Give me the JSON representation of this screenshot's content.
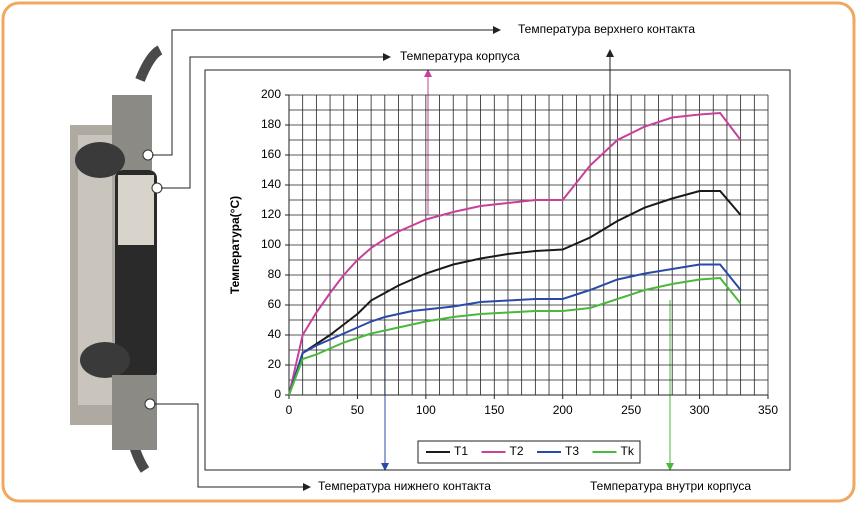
{
  "chart_data": {
    "type": "line",
    "y_label": "Температура(°C)",
    "annotations": {
      "top_contact": "Температура верхнего контакта",
      "body": "Температура корпуса",
      "bottom_contact": "Температура нижнего контакта",
      "inside": "Температура внутри корпуса"
    },
    "x": [
      0,
      10,
      20,
      30,
      40,
      50,
      60,
      70,
      80,
      90,
      100,
      120,
      140,
      160,
      180,
      200,
      220,
      240,
      260,
      280,
      300,
      315,
      330
    ],
    "series": [
      {
        "name": "T1",
        "color": "#1a1a1a",
        "values": [
          0,
          28,
          34,
          40,
          47,
          54,
          63,
          68,
          73,
          77,
          81,
          87,
          91,
          94,
          96,
          97,
          105,
          116,
          125,
          131,
          136,
          136,
          120
        ]
      },
      {
        "name": "T2",
        "color": "#c8409a",
        "values": [
          0,
          40,
          55,
          68,
          80,
          90,
          98,
          104,
          109,
          113,
          117,
          122,
          126,
          128,
          130,
          130,
          153,
          170,
          179,
          185,
          187,
          188,
          170
        ]
      },
      {
        "name": "T3",
        "color": "#2a4aa8",
        "values": [
          0,
          28,
          33,
          37,
          41,
          45,
          49,
          52,
          54,
          56,
          57,
          59,
          62,
          63,
          64,
          64,
          70,
          77,
          81,
          84,
          87,
          87,
          70
        ]
      },
      {
        "name": "Tk",
        "color": "#4ab83a",
        "values": [
          0,
          24,
          27,
          31,
          35,
          38,
          41,
          43,
          45,
          47,
          49,
          52,
          54,
          55,
          56,
          56,
          58,
          64,
          70,
          74,
          77,
          78,
          61
        ]
      }
    ],
    "xlim": [
      0,
      350
    ],
    "xticks": [
      0,
      50,
      100,
      150,
      200,
      250,
      300,
      350
    ],
    "ylim": [
      0,
      200
    ],
    "yticks": [
      0,
      20,
      40,
      60,
      80,
      100,
      120,
      140,
      160,
      180,
      200
    ],
    "xgrid": [
      10,
      20,
      30,
      40,
      50,
      60,
      70,
      80,
      90,
      100,
      110,
      120,
      130,
      140,
      150,
      160,
      170,
      180,
      190,
      200,
      210,
      220,
      230,
      240,
      250,
      260,
      270,
      280,
      290,
      300,
      310,
      320,
      330,
      340,
      350
    ],
    "ygrid": [
      10,
      20,
      30,
      40,
      50,
      60,
      70,
      80,
      90,
      100,
      110,
      120,
      130,
      140,
      150,
      160,
      170,
      180,
      190,
      200
    ],
    "grid": true
  }
}
